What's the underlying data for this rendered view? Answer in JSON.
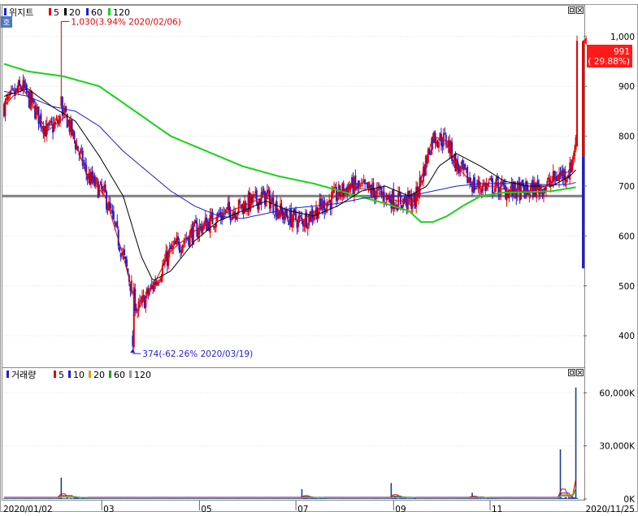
{
  "chart_data": [
    {
      "type": "candlestick",
      "title": "위지트",
      "legend": [
        {
          "label": "5",
          "color": "#e60000"
        },
        {
          "label": "20",
          "color": "#000000"
        },
        {
          "label": "60",
          "color": "#1f1fd0"
        },
        {
          "label": "120",
          "color": "#19d219"
        }
      ],
      "badge": "호",
      "ylim": [
        340,
        1060
      ],
      "y_ticks": [
        400,
        500,
        600,
        700,
        800,
        900,
        1000
      ],
      "y_tick_labels": [
        "400",
        "500",
        "600",
        "700",
        "800",
        "900",
        "1,000"
      ],
      "x_labels": [
        "2020/01/02",
        "03",
        "05",
        "07",
        "09",
        "11",
        "2020/11/25"
      ],
      "current_price": {
        "value": 991,
        "label": "991",
        "change": "( 29.88%)"
      },
      "annotations": {
        "high": {
          "value": 1030,
          "label": "1,030(3.94% 2020/02/06)"
        },
        "low": {
          "value": 374,
          "label": "374(-62.26% 2020/03/19)"
        }
      },
      "reference_line": 680,
      "ma_keypoints": {
        "ma5": [
          [
            0,
            860
          ],
          [
            15,
            900
          ],
          [
            36,
            810
          ],
          [
            52,
            840
          ],
          [
            70,
            720
          ],
          [
            85,
            680
          ],
          [
            100,
            560
          ],
          [
            112,
            450
          ],
          [
            125,
            500
          ],
          [
            140,
            570
          ],
          [
            160,
            610
          ],
          [
            180,
            640
          ],
          [
            200,
            660
          ],
          [
            220,
            680
          ],
          [
            235,
            640
          ],
          [
            250,
            630
          ],
          [
            270,
            665
          ],
          [
            290,
            700
          ],
          [
            310,
            690
          ],
          [
            330,
            670
          ],
          [
            345,
            670
          ],
          [
            360,
            800
          ],
          [
            372,
            790
          ],
          [
            380,
            740
          ],
          [
            395,
            700
          ],
          [
            410,
            700
          ],
          [
            425,
            690
          ],
          [
            440,
            690
          ],
          [
            455,
            700
          ],
          [
            465,
            720
          ],
          [
            475,
            730
          ],
          [
            481,
            800
          ]
        ],
        "ma20": [
          [
            0,
            880
          ],
          [
            20,
            895
          ],
          [
            40,
            860
          ],
          [
            60,
            830
          ],
          [
            80,
            760
          ],
          [
            100,
            680
          ],
          [
            115,
            560
          ],
          [
            125,
            510
          ],
          [
            140,
            530
          ],
          [
            160,
            590
          ],
          [
            180,
            630
          ],
          [
            200,
            650
          ],
          [
            220,
            670
          ],
          [
            240,
            650
          ],
          [
            260,
            640
          ],
          [
            280,
            660
          ],
          [
            300,
            690
          ],
          [
            320,
            700
          ],
          [
            340,
            680
          ],
          [
            355,
            700
          ],
          [
            365,
            740
          ],
          [
            380,
            765
          ],
          [
            400,
            740
          ],
          [
            420,
            710
          ],
          [
            440,
            700
          ],
          [
            460,
            700
          ],
          [
            475,
            720
          ],
          [
            481,
            735
          ]
        ],
        "ma60": [
          [
            0,
            890
          ],
          [
            20,
            880
          ],
          [
            40,
            860
          ],
          [
            60,
            850
          ],
          [
            80,
            820
          ],
          [
            100,
            770
          ],
          [
            120,
            730
          ],
          [
            140,
            690
          ],
          [
            160,
            660
          ],
          [
            180,
            640
          ],
          [
            200,
            635
          ],
          [
            220,
            645
          ],
          [
            240,
            655
          ],
          [
            260,
            660
          ],
          [
            280,
            665
          ],
          [
            300,
            675
          ],
          [
            320,
            680
          ],
          [
            340,
            680
          ],
          [
            360,
            690
          ],
          [
            380,
            700
          ],
          [
            400,
            705
          ],
          [
            420,
            705
          ],
          [
            440,
            705
          ],
          [
            460,
            702
          ],
          [
            475,
            704
          ],
          [
            481,
            708
          ]
        ],
        "ma120": [
          [
            0,
            945
          ],
          [
            20,
            930
          ],
          [
            50,
            920
          ],
          [
            80,
            900
          ],
          [
            110,
            850
          ],
          [
            140,
            800
          ],
          [
            170,
            770
          ],
          [
            200,
            740
          ],
          [
            230,
            720
          ],
          [
            260,
            705
          ],
          [
            290,
            685
          ],
          [
            320,
            665
          ],
          [
            340,
            650
          ],
          [
            350,
            628
          ],
          [
            360,
            628
          ],
          [
            372,
            640
          ],
          [
            385,
            660
          ],
          [
            400,
            680
          ],
          [
            420,
            687
          ],
          [
            440,
            688
          ],
          [
            460,
            690
          ],
          [
            481,
            698
          ]
        ]
      }
    },
    {
      "type": "bar",
      "title": "거래량",
      "legend": [
        {
          "label": "5",
          "color": "#e60000"
        },
        {
          "label": "10",
          "color": "#1f1fd0"
        },
        {
          "label": "20",
          "color": "#e69b00"
        },
        {
          "label": "60",
          "color": "#19a019"
        },
        {
          "label": "120",
          "color": "#999999"
        }
      ],
      "ylim": [
        0,
        68000
      ],
      "y_ticks": [
        0,
        30000,
        60000
      ],
      "y_tick_labels": [
        "0K",
        "30,000K",
        "60,000K"
      ],
      "spikes": [
        {
          "x": 48,
          "value": 12000
        },
        {
          "x": 250,
          "value": 5500
        },
        {
          "x": 325,
          "value": 9000
        },
        {
          "x": 393,
          "value": 3500
        },
        {
          "x": 467,
          "value": 28000
        },
        {
          "x": 480,
          "value": 63000
        }
      ]
    }
  ]
}
